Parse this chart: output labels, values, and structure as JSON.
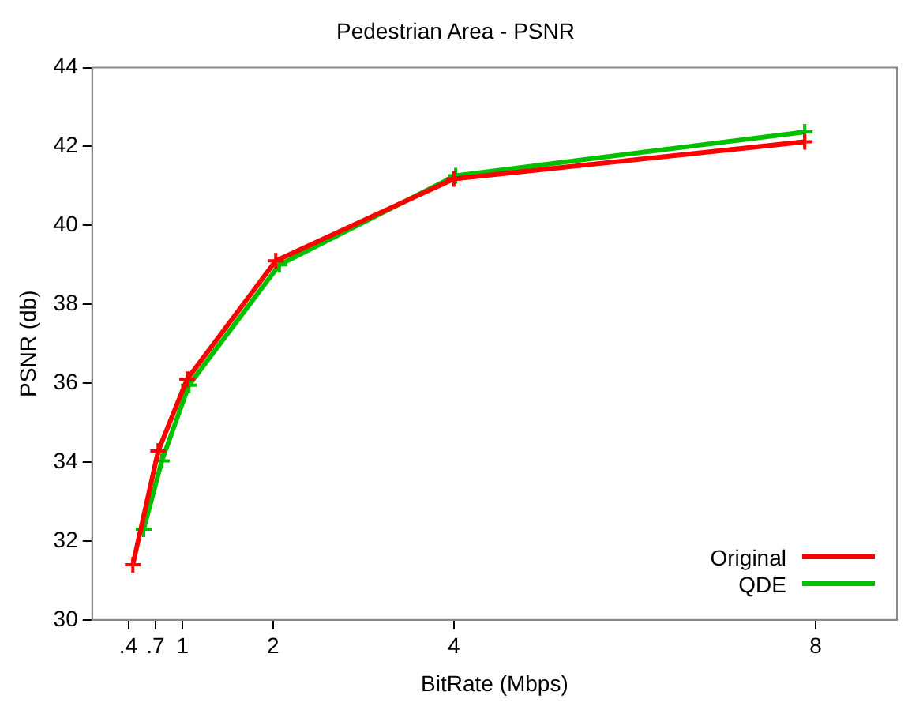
{
  "chart_data": {
    "type": "line",
    "title": "Pedestrian Area - PSNR",
    "xlabel": "BitRate (Mbps)",
    "ylabel": "PSNR (db)",
    "xlim": [
      0,
      8.9
    ],
    "xticks": [
      {
        "value": 0.4,
        "label": ".4"
      },
      {
        "value": 0.7,
        "label": ".7"
      },
      1,
      2,
      4,
      8
    ],
    "ylim": [
      30,
      44
    ],
    "yticks": [
      30,
      32,
      34,
      36,
      38,
      40,
      42,
      44
    ],
    "series": [
      {
        "name": "Original",
        "color": "#ff0000",
        "x": [
          0.45,
          0.73,
          1.05,
          2.03,
          4.0,
          7.88
        ],
        "values": [
          31.4,
          34.28,
          36.1,
          39.1,
          41.18,
          42.12
        ]
      },
      {
        "name": "QDE",
        "color": "#00c000",
        "x": [
          0.57,
          0.77,
          1.07,
          2.07,
          4.02,
          7.88
        ],
        "values": [
          32.3,
          34.03,
          35.95,
          39.0,
          41.26,
          42.37
        ]
      }
    ],
    "marker": "cross",
    "line_style": "solid",
    "grid": false,
    "legend": "bottom right"
  }
}
